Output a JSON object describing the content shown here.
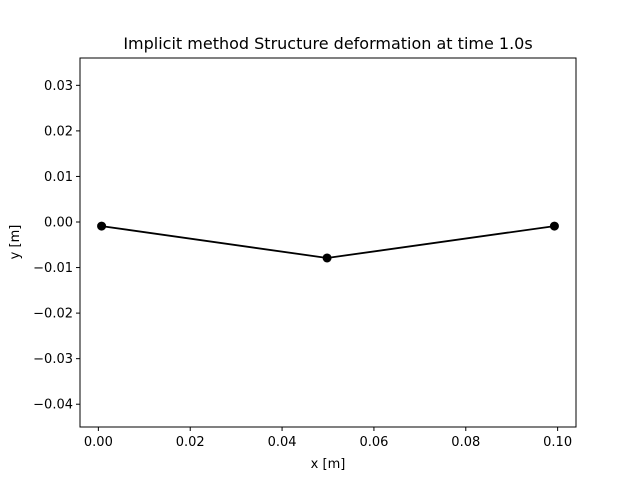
{
  "chart_data": {
    "type": "line",
    "title": "Implicit method Structure deformation at time 1.0s",
    "xlabel": "x [m]",
    "ylabel": "y [m]",
    "xlim": [
      -0.004,
      0.104
    ],
    "ylim": [
      -0.045,
      0.036
    ],
    "xticks": [
      0.0,
      0.02,
      0.04,
      0.06,
      0.08,
      0.1
    ],
    "xtick_labels": [
      "0.00",
      "0.02",
      "0.04",
      "0.06",
      "0.08",
      "0.10"
    ],
    "yticks": [
      0.03,
      0.02,
      0.01,
      0.0,
      -0.01,
      -0.02,
      -0.03,
      -0.04
    ],
    "ytick_labels": [
      "0.03",
      "0.02",
      "0.01",
      "0.00",
      "−0.01",
      "−0.02",
      "−0.03",
      "−0.04"
    ],
    "grid": false,
    "series": [
      {
        "color": "#000000",
        "marker": "circle",
        "x": [
          0.0007,
          0.0498,
          0.0993
        ],
        "y": [
          -0.0009,
          -0.0079,
          -0.0009
        ]
      }
    ]
  }
}
